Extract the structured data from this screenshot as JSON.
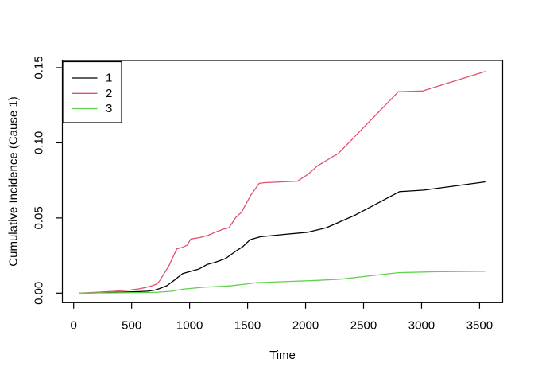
{
  "figure": {
    "background": "#ffffff",
    "axis_color": "#000000"
  },
  "chart_data": {
    "type": "line",
    "title": "",
    "xlabel": "Time",
    "ylabel": "Cumulative Incidence (Cause 1)",
    "grid": false,
    "x_range": [
      -97.3,
      3699.3
    ],
    "y_range": [
      -0.00635,
      0.15476
    ],
    "x_ticks": [
      {
        "label": "0",
        "value": 0
      },
      {
        "label": "500",
        "value": 500
      },
      {
        "label": "1000",
        "value": 1000
      },
      {
        "label": "1500",
        "value": 1500
      },
      {
        "label": "2000",
        "value": 2000
      },
      {
        "label": "2500",
        "value": 2500
      },
      {
        "label": "3000",
        "value": 3000
      },
      {
        "label": "3500",
        "value": 3500
      }
    ],
    "y_ticks": [
      {
        "label": "0.00",
        "value": 0.0
      },
      {
        "label": "0.05",
        "value": 0.05
      },
      {
        "label": "0.10",
        "value": 0.1
      },
      {
        "label": "0.15",
        "value": 0.15
      }
    ],
    "legend": {
      "position": "top-left",
      "entries": [
        {
          "label": "1",
          "color": "#000000"
        },
        {
          "label": "2",
          "color": "#DF536B"
        },
        {
          "label": "3",
          "color": "#61D04F"
        }
      ]
    },
    "series": [
      {
        "name": "1",
        "color": "#000000",
        "points": [
          [
            50,
            0
          ],
          [
            350,
            0.0005
          ],
          [
            560,
            0.001
          ],
          [
            640,
            0.0013
          ],
          [
            700,
            0.002
          ],
          [
            740,
            0.003
          ],
          [
            805,
            0.005
          ],
          [
            875,
            0.009
          ],
          [
            940,
            0.013
          ],
          [
            1010,
            0.0145
          ],
          [
            1080,
            0.016
          ],
          [
            1150,
            0.019
          ],
          [
            1220,
            0.0205
          ],
          [
            1310,
            0.023
          ],
          [
            1400,
            0.028
          ],
          [
            1460,
            0.031
          ],
          [
            1520,
            0.0355
          ],
          [
            1610,
            0.0375
          ],
          [
            1810,
            0.039
          ],
          [
            2020,
            0.0405
          ],
          [
            2180,
            0.0435
          ],
          [
            2430,
            0.052
          ],
          [
            2810,
            0.0675
          ],
          [
            3020,
            0.0685
          ],
          [
            3550,
            0.074
          ]
        ]
      },
      {
        "name": "2",
        "color": "#DF536B",
        "points": [
          [
            50,
            0
          ],
          [
            250,
            0.0008
          ],
          [
            360,
            0.0013
          ],
          [
            480,
            0.002
          ],
          [
            560,
            0.0028
          ],
          [
            620,
            0.0037
          ],
          [
            680,
            0.005
          ],
          [
            720,
            0.0062
          ],
          [
            740,
            0.008
          ],
          [
            820,
            0.018
          ],
          [
            890,
            0.0295
          ],
          [
            940,
            0.0305
          ],
          [
            980,
            0.032
          ],
          [
            1010,
            0.036
          ],
          [
            1090,
            0.037
          ],
          [
            1160,
            0.0385
          ],
          [
            1220,
            0.0405
          ],
          [
            1290,
            0.0425
          ],
          [
            1340,
            0.0435
          ],
          [
            1400,
            0.0505
          ],
          [
            1450,
            0.054
          ],
          [
            1470,
            0.057
          ],
          [
            1530,
            0.0655
          ],
          [
            1600,
            0.073
          ],
          [
            1650,
            0.0735
          ],
          [
            1930,
            0.0745
          ],
          [
            2020,
            0.079
          ],
          [
            2100,
            0.0845
          ],
          [
            2250,
            0.0915
          ],
          [
            2280,
            0.0927
          ],
          [
            2800,
            0.134
          ],
          [
            3010,
            0.1345
          ],
          [
            3550,
            0.1475
          ]
        ]
      },
      {
        "name": "3",
        "color": "#61D04F",
        "points": [
          [
            50,
            0
          ],
          [
            700,
            0.0005
          ],
          [
            840,
            0.0012
          ],
          [
            940,
            0.0026
          ],
          [
            1120,
            0.0039
          ],
          [
            1350,
            0.0048
          ],
          [
            1480,
            0.006
          ],
          [
            1580,
            0.007
          ],
          [
            1900,
            0.0079
          ],
          [
            2100,
            0.0085
          ],
          [
            2310,
            0.0093
          ],
          [
            2550,
            0.0115
          ],
          [
            2800,
            0.0136
          ],
          [
            3100,
            0.0142
          ],
          [
            3550,
            0.0145
          ]
        ]
      }
    ]
  }
}
